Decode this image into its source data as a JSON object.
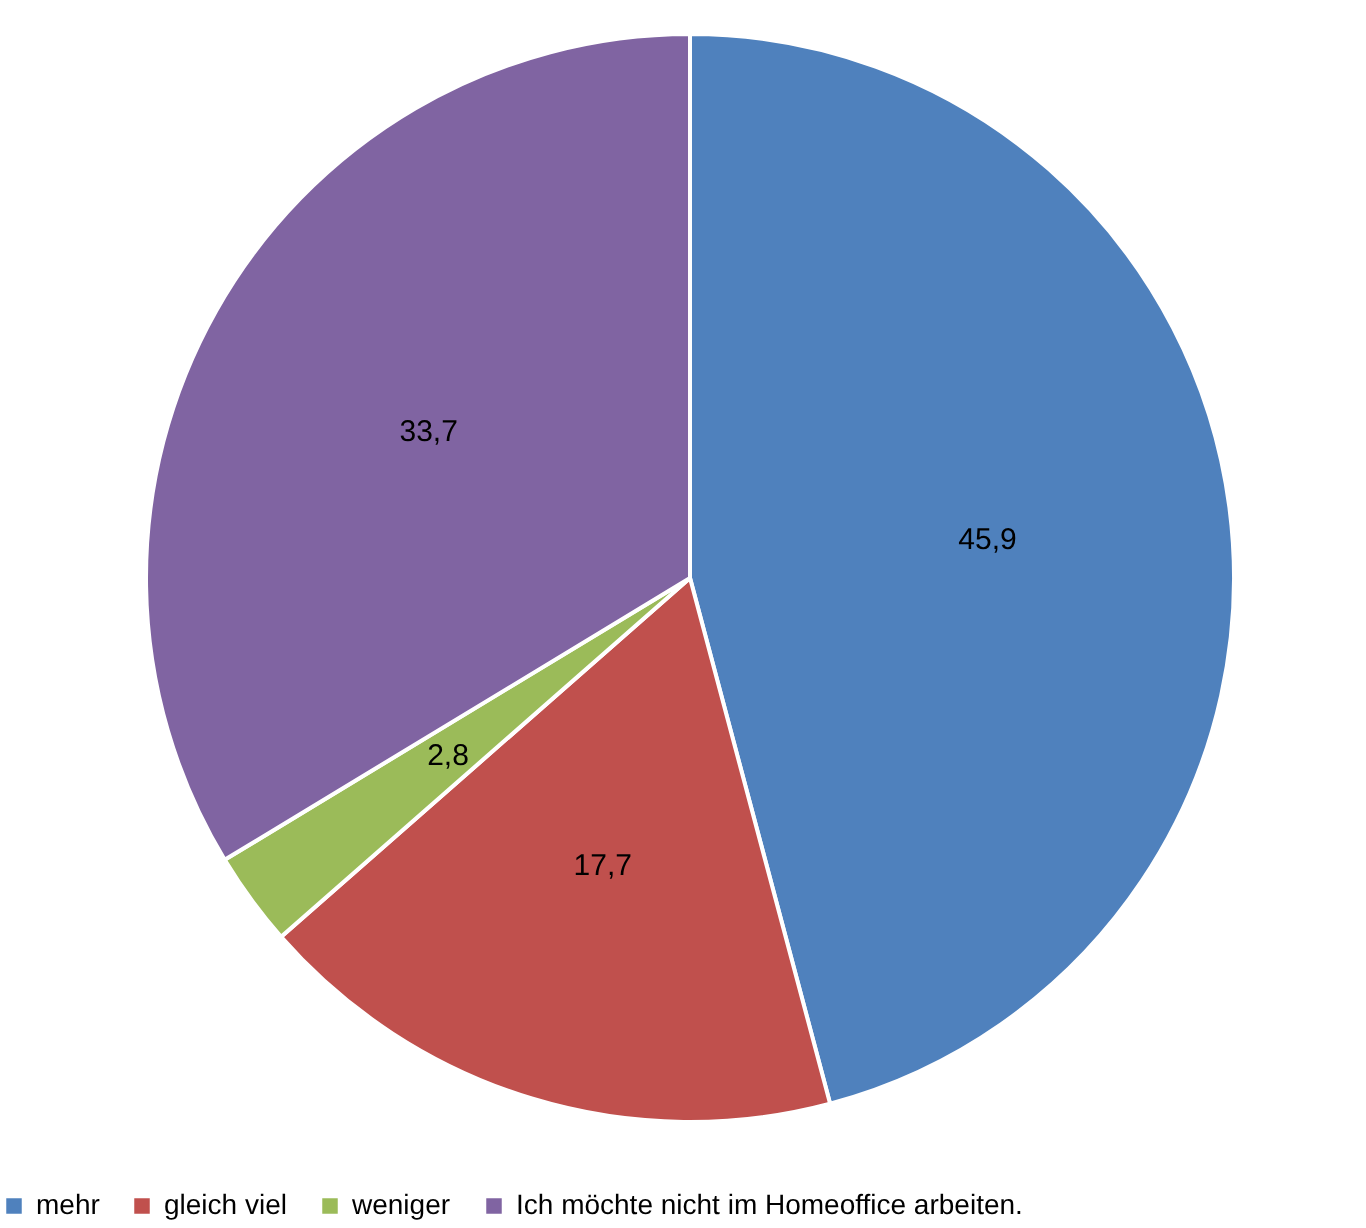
{
  "chart_data": {
    "type": "pie",
    "categories": [
      "mehr",
      "gleich viel",
      "weniger",
      "Ich möchte nicht im Homeoffice arbeiten."
    ],
    "values": [
      45.9,
      17.7,
      2.8,
      33.7
    ],
    "colors": [
      "#4f81bd",
      "#c0504d",
      "#9bbb59",
      "#8064a2"
    ],
    "value_labels": [
      "45,9",
      "17,7",
      "2,8",
      "33,7"
    ],
    "legend": "bottom"
  }
}
